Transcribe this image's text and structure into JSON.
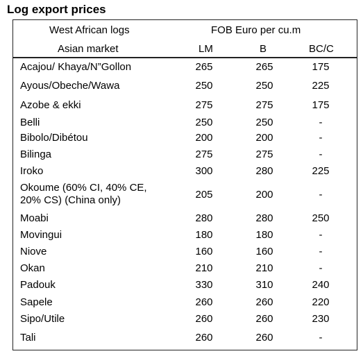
{
  "title": "Log export prices",
  "header": {
    "left_line1": "West African logs",
    "left_line2": "Asian market",
    "right_line1": "FOB Euro per cu.m",
    "cols": [
      "LM",
      "B",
      "BC/C"
    ]
  },
  "rows": [
    {
      "name": "Acajou/ Khaya/N”Gollon",
      "lm": "265",
      "b": "265",
      "bc": "175"
    },
    {
      "name": "Ayous/Obeche/Wawa",
      "lm": "250",
      "b": "250",
      "bc": "225"
    },
    {
      "name": "Azobe & ekki",
      "lm": "275",
      "b": "275",
      "bc": "175"
    },
    {
      "name": "Belli",
      "lm": "250",
      "b": "250",
      "bc": "-"
    },
    {
      "name": "Bibolo/Dibétou",
      "lm": "200",
      "b": "200",
      "bc": "-"
    },
    {
      "name": "Bilinga",
      "lm": "275",
      "b": "275",
      "bc": "-"
    },
    {
      "name": "Iroko",
      "lm": "300",
      "b": "280",
      "bc": "225"
    },
    {
      "name": "Okoume (60% CI, 40% CE,",
      "name2": "20% CS) (China only)",
      "lm": "205",
      "b": "200",
      "bc": "-"
    },
    {
      "name": "Moabi",
      "lm": "280",
      "b": "280",
      "bc": "250"
    },
    {
      "name": "Movingui",
      "lm": "180",
      "b": "180",
      "bc": "-"
    },
    {
      "name": "Niove",
      "lm": "160",
      "b": "160",
      "bc": "-"
    },
    {
      "name": "Okan",
      "lm": "210",
      "b": "210",
      "bc": "-"
    },
    {
      "name": "Padouk",
      "lm": "330",
      "b": "310",
      "bc": "240"
    },
    {
      "name": "Sapele",
      "lm": "260",
      "b": "260",
      "bc": "220"
    },
    {
      "name": "Sipo/Utile",
      "lm": "260",
      "b": "260",
      "bc": "230"
    },
    {
      "name": "Tali",
      "lm": "260",
      "b": "260",
      "bc": "-"
    }
  ]
}
